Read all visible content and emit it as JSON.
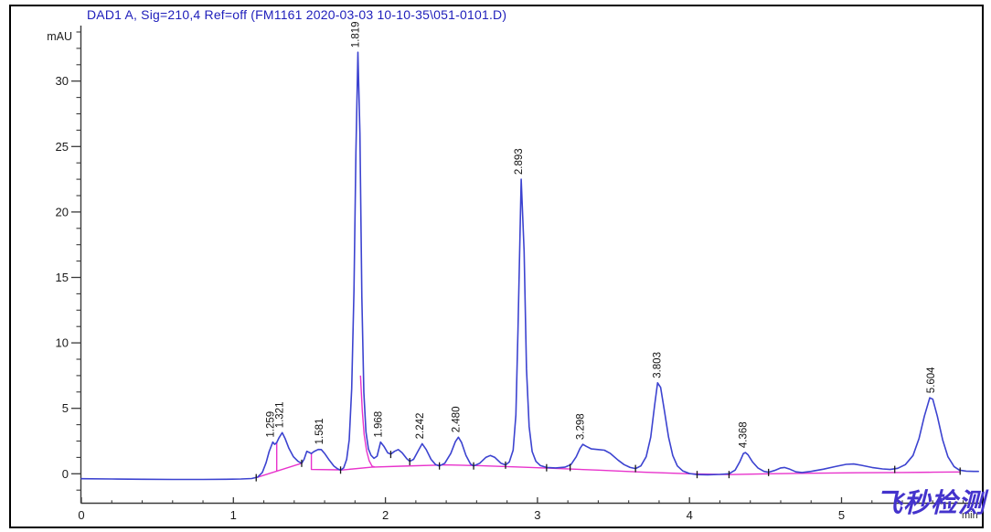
{
  "header": {
    "title": "DAD1 A, Sig=210,4 Ref=off (FM1161 2020-03-03 10-10-35\\051-0101.D)"
  },
  "labels": {
    "y_unit": "mAU",
    "x_unit": "min"
  },
  "watermark_text": "飞秒检测",
  "chart_data": {
    "type": "line",
    "title": "DAD1 A, Sig=210,4 Ref=off (FM1161 2020-03-03 10-10-35\\051-0101.D)",
    "xlabel": "min",
    "ylabel": "mAU",
    "xlim": [
      0,
      5.9
    ],
    "ylim": [
      -2.2,
      34.3
    ],
    "grid": false,
    "legend": null,
    "x_major_ticks": [
      0,
      1,
      2,
      3,
      4,
      5
    ],
    "x_minor_step": 0.2,
    "y_major_ticks": [
      0,
      5,
      10,
      15,
      20,
      25,
      30
    ],
    "y_minor_step": 1.25,
    "peaks": [
      {
        "label": "1.259",
        "rt": 1.259,
        "height_mau": 2.42
      },
      {
        "label": "1.321",
        "rt": 1.321,
        "height_mau": 3.14
      },
      {
        "label": "1.581",
        "rt": 1.581,
        "height_mau": 1.88
      },
      {
        "label": "1.819",
        "rt": 1.819,
        "height_mau": 32.2
      },
      {
        "label": "1.968",
        "rt": 1.968,
        "height_mau": 2.42
      },
      {
        "label": "2.242",
        "rt": 2.242,
        "height_mau": 2.3
      },
      {
        "label": "2.480",
        "rt": 2.48,
        "height_mau": 2.79
      },
      {
        "label": "2.893",
        "rt": 2.893,
        "height_mau": 22.5
      },
      {
        "label": "3.298",
        "rt": 3.298,
        "height_mau": 2.25
      },
      {
        "label": "3.803",
        "rt": 3.803,
        "height_mau": 6.95
      },
      {
        "label": "4.368",
        "rt": 4.368,
        "height_mau": 1.62
      },
      {
        "label": "5.604",
        "rt": 5.604,
        "height_mau": 5.8
      }
    ],
    "series": [
      {
        "name": "DAD1 A signal",
        "color": "#3c43d0",
        "points": [
          [
            0.0,
            -0.38
          ],
          [
            0.2,
            -0.4
          ],
          [
            0.4,
            -0.42
          ],
          [
            0.6,
            -0.43
          ],
          [
            0.8,
            -0.43
          ],
          [
            0.95,
            -0.42
          ],
          [
            1.05,
            -0.4
          ],
          [
            1.12,
            -0.36
          ],
          [
            1.16,
            -0.25
          ],
          [
            1.19,
            0.1
          ],
          [
            1.215,
            0.85
          ],
          [
            1.235,
            1.7
          ],
          [
            1.259,
            2.42
          ],
          [
            1.272,
            2.25
          ],
          [
            1.285,
            2.38
          ],
          [
            1.3,
            2.75
          ],
          [
            1.321,
            3.14
          ],
          [
            1.34,
            2.7
          ],
          [
            1.365,
            1.95
          ],
          [
            1.395,
            1.3
          ],
          [
            1.425,
            0.95
          ],
          [
            1.449,
            0.8
          ],
          [
            1.465,
            1.1
          ],
          [
            1.483,
            1.72
          ],
          [
            1.5,
            1.62
          ],
          [
            1.513,
            1.55
          ],
          [
            1.53,
            1.7
          ],
          [
            1.558,
            1.86
          ],
          [
            1.578,
            1.85
          ],
          [
            1.6,
            1.55
          ],
          [
            1.63,
            1.05
          ],
          [
            1.66,
            0.6
          ],
          [
            1.685,
            0.38
          ],
          [
            1.705,
            0.28
          ],
          [
            1.725,
            0.45
          ],
          [
            1.745,
            1.1
          ],
          [
            1.762,
            2.6
          ],
          [
            1.778,
            6.5
          ],
          [
            1.793,
            14.0
          ],
          [
            1.806,
            24.5
          ],
          [
            1.819,
            32.2
          ],
          [
            1.832,
            26.0
          ],
          [
            1.845,
            13.5
          ],
          [
            1.858,
            6.2
          ],
          [
            1.872,
            3.2
          ],
          [
            1.888,
            1.9
          ],
          [
            1.905,
            1.42
          ],
          [
            1.925,
            1.18
          ],
          [
            1.945,
            1.35
          ],
          [
            1.968,
            2.42
          ],
          [
            1.99,
            2.1
          ],
          [
            2.015,
            1.6
          ],
          [
            2.035,
            1.5
          ],
          [
            2.06,
            1.72
          ],
          [
            2.085,
            1.85
          ],
          [
            2.11,
            1.6
          ],
          [
            2.14,
            1.15
          ],
          [
            2.16,
            0.95
          ],
          [
            2.185,
            1.1
          ],
          [
            2.215,
            1.75
          ],
          [
            2.242,
            2.3
          ],
          [
            2.268,
            1.85
          ],
          [
            2.3,
            1.1
          ],
          [
            2.33,
            0.7
          ],
          [
            2.355,
            0.6
          ],
          [
            2.39,
            0.8
          ],
          [
            2.43,
            1.55
          ],
          [
            2.46,
            2.45
          ],
          [
            2.48,
            2.79
          ],
          [
            2.5,
            2.4
          ],
          [
            2.53,
            1.4
          ],
          [
            2.56,
            0.75
          ],
          [
            2.58,
            0.6
          ],
          [
            2.62,
            0.8
          ],
          [
            2.66,
            1.25
          ],
          [
            2.69,
            1.4
          ],
          [
            2.72,
            1.25
          ],
          [
            2.76,
            0.8
          ],
          [
            2.79,
            0.68
          ],
          [
            2.815,
            0.9
          ],
          [
            2.84,
            1.8
          ],
          [
            2.858,
            4.5
          ],
          [
            2.872,
            11.0
          ],
          [
            2.893,
            22.5
          ],
          [
            2.912,
            17.0
          ],
          [
            2.928,
            8.0
          ],
          [
            2.945,
            3.6
          ],
          [
            2.965,
            1.7
          ],
          [
            2.99,
            0.95
          ],
          [
            3.02,
            0.62
          ],
          [
            3.06,
            0.48
          ],
          [
            3.12,
            0.45
          ],
          [
            3.18,
            0.5
          ],
          [
            3.22,
            0.7
          ],
          [
            3.255,
            1.3
          ],
          [
            3.28,
            1.95
          ],
          [
            3.298,
            2.25
          ],
          [
            3.32,
            2.1
          ],
          [
            3.355,
            1.9
          ],
          [
            3.4,
            1.85
          ],
          [
            3.44,
            1.8
          ],
          [
            3.48,
            1.55
          ],
          [
            3.53,
            1.05
          ],
          [
            3.57,
            0.7
          ],
          [
            3.61,
            0.48
          ],
          [
            3.645,
            0.4
          ],
          [
            3.68,
            0.6
          ],
          [
            3.715,
            1.3
          ],
          [
            3.745,
            2.8
          ],
          [
            3.77,
            5.2
          ],
          [
            3.79,
            6.95
          ],
          [
            3.81,
            6.6
          ],
          [
            3.835,
            4.8
          ],
          [
            3.862,
            2.8
          ],
          [
            3.89,
            1.4
          ],
          [
            3.92,
            0.6
          ],
          [
            3.955,
            0.22
          ],
          [
            4.0,
            0.02
          ],
          [
            4.05,
            -0.06
          ],
          [
            4.12,
            -0.08
          ],
          [
            4.2,
            -0.05
          ],
          [
            4.26,
            0.0
          ],
          [
            4.3,
            0.28
          ],
          [
            4.33,
            0.9
          ],
          [
            4.355,
            1.55
          ],
          [
            4.368,
            1.62
          ],
          [
            4.385,
            1.45
          ],
          [
            4.415,
            0.9
          ],
          [
            4.45,
            0.45
          ],
          [
            4.49,
            0.18
          ],
          [
            4.52,
            0.12
          ],
          [
            4.56,
            0.25
          ],
          [
            4.6,
            0.45
          ],
          [
            4.625,
            0.48
          ],
          [
            4.66,
            0.35
          ],
          [
            4.7,
            0.15
          ],
          [
            4.74,
            0.1
          ],
          [
            4.8,
            0.18
          ],
          [
            4.88,
            0.35
          ],
          [
            4.96,
            0.55
          ],
          [
            5.03,
            0.72
          ],
          [
            5.08,
            0.75
          ],
          [
            5.13,
            0.65
          ],
          [
            5.2,
            0.48
          ],
          [
            5.27,
            0.37
          ],
          [
            5.32,
            0.33
          ],
          [
            5.37,
            0.42
          ],
          [
            5.42,
            0.7
          ],
          [
            5.47,
            1.4
          ],
          [
            5.51,
            2.7
          ],
          [
            5.545,
            4.4
          ],
          [
            5.58,
            5.8
          ],
          [
            5.6,
            5.7
          ],
          [
            5.63,
            4.4
          ],
          [
            5.665,
            2.6
          ],
          [
            5.7,
            1.3
          ],
          [
            5.74,
            0.55
          ],
          [
            5.775,
            0.28
          ],
          [
            5.82,
            0.2
          ],
          [
            5.87,
            0.18
          ],
          [
            5.9,
            0.18
          ]
        ]
      }
    ],
    "baseline": {
      "color": "#e833cc",
      "segments": [
        [
          [
            1.15,
            -0.3
          ],
          [
            1.449,
            0.8
          ]
        ],
        [
          [
            1.285,
            2.36
          ],
          [
            1.285,
            0.2
          ]
        ],
        [
          [
            1.513,
            1.55
          ],
          [
            1.513,
            0.33
          ],
          [
            1.705,
            0.3
          ]
        ],
        [
          [
            1.705,
            0.28
          ],
          [
            1.91,
            0.5
          ],
          [
            2.1,
            0.58
          ],
          [
            2.4,
            0.68
          ],
          [
            2.62,
            0.62
          ],
          [
            2.9,
            0.5
          ],
          [
            3.1,
            0.42
          ],
          [
            3.4,
            0.28
          ],
          [
            3.7,
            0.12
          ],
          [
            4.0,
            0.0
          ],
          [
            4.26,
            -0.06
          ],
          [
            4.52,
            0.0
          ],
          [
            4.8,
            0.04
          ],
          [
            5.1,
            0.08
          ],
          [
            5.4,
            0.1
          ],
          [
            5.6,
            0.12
          ],
          [
            5.78,
            0.14
          ]
        ],
        [
          [
            1.836,
            7.5
          ],
          [
            1.848,
            4.8
          ],
          [
            1.86,
            3.0
          ],
          [
            1.876,
            1.75
          ],
          [
            1.893,
            1.0
          ],
          [
            1.912,
            0.58
          ],
          [
            1.93,
            0.52
          ]
        ]
      ]
    },
    "integration_marks": [
      [
        1.15,
        -0.3
      ],
      [
        1.449,
        0.8
      ],
      [
        1.705,
        0.28
      ],
      [
        2.035,
        1.48
      ],
      [
        2.16,
        0.93
      ],
      [
        2.355,
        0.6
      ],
      [
        2.58,
        0.6
      ],
      [
        2.79,
        0.66
      ],
      [
        3.06,
        0.46
      ],
      [
        3.215,
        0.48
      ],
      [
        3.645,
        0.4
      ],
      [
        4.05,
        -0.06
      ],
      [
        4.26,
        -0.06
      ],
      [
        4.52,
        0.1
      ],
      [
        5.35,
        0.33
      ],
      [
        5.78,
        0.2
      ]
    ],
    "colors": {
      "trace": "#3c43d0",
      "baseline": "#e833cc",
      "title": "#2020bb",
      "axis": "#3a3a3a",
      "tick_label": "#1a1a1a",
      "peak_label": "#141414",
      "watermark": "#4433cc"
    }
  }
}
